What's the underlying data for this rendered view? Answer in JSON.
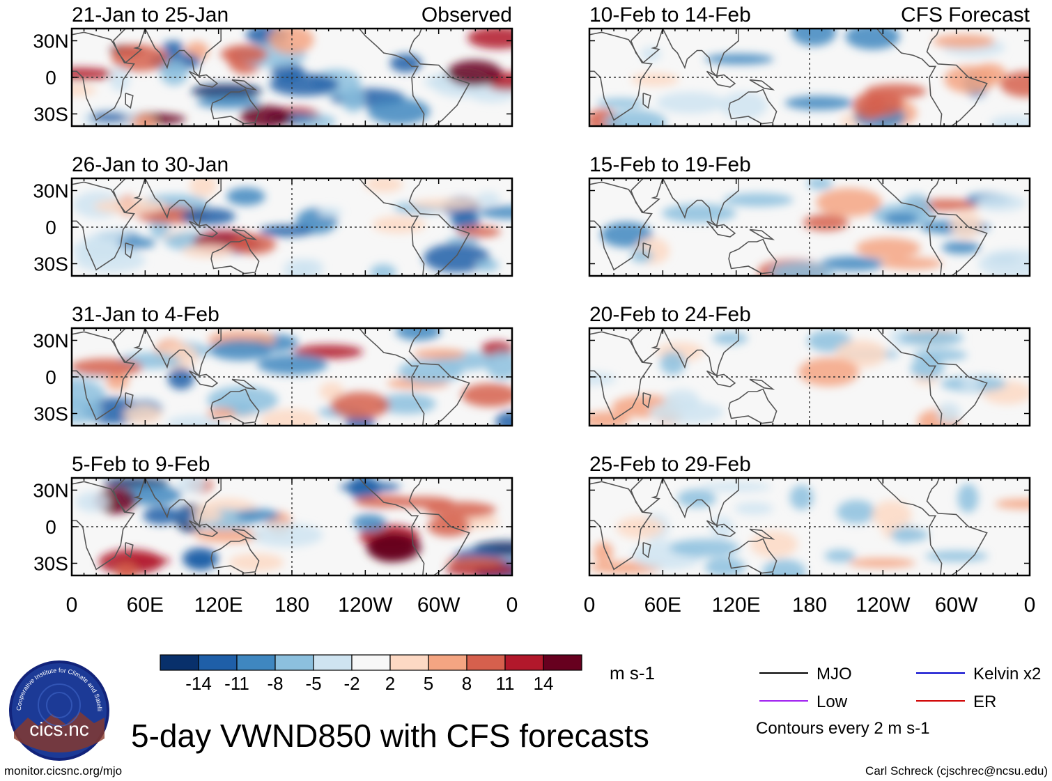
{
  "chart_data": {
    "type": "heatmap",
    "title": "5-day VWND850 with CFS forecasts",
    "variable": "VWND850",
    "units": "m s-1",
    "observed_label": "Observed",
    "forecast_label": "CFS Forecast",
    "x_ticks": [
      "0",
      "60E",
      "120E",
      "180",
      "120W",
      "60W",
      "0"
    ],
    "y_ticks": [
      "30N",
      "0",
      "30S"
    ],
    "lon_range": [
      0,
      360
    ],
    "lat_range": [
      -40,
      40
    ],
    "panels": [
      {
        "title": "21-Jan to 25-Jan",
        "source": "Observed"
      },
      {
        "title": "26-Jan to 30-Jan",
        "source": "Observed"
      },
      {
        "title": "31-Jan to 4-Feb",
        "source": "Observed"
      },
      {
        "title": "5-Feb to 9-Feb",
        "source": "Observed"
      },
      {
        "title": "10-Feb to 14-Feb",
        "source": "CFS Forecast"
      },
      {
        "title": "15-Feb to 19-Feb",
        "source": "CFS Forecast"
      },
      {
        "title": "20-Feb to 24-Feb",
        "source": "CFS Forecast"
      },
      {
        "title": "25-Feb to 29-Feb",
        "source": "CFS Forecast"
      }
    ],
    "colorbar": {
      "labels": [
        "-14",
        "-11",
        "-8",
        "-5",
        "-2",
        "2",
        "5",
        "8",
        "11",
        "14"
      ],
      "colors": [
        "#08306b",
        "#1f5fa8",
        "#3f87c0",
        "#8cc0de",
        "#cfe4f1",
        "#f7f7f7",
        "#fdd9c4",
        "#f4a582",
        "#d6604d",
        "#b2182b",
        "#67001f"
      ]
    },
    "legend": {
      "items": [
        {
          "label": "MJO",
          "color": "#000000"
        },
        {
          "label": "Kelvin x2",
          "color": "#0000cc"
        },
        {
          "label": "Low",
          "color": "#a020f0"
        },
        {
          "label": "ER",
          "color": "#d00000"
        }
      ],
      "note": "Contours every 2 m s-1"
    }
  },
  "footer": {
    "logo_text": "cics.nc",
    "logo_ring_text": "Cooperative Institute for Climate and Satellites",
    "url": "monitor.cicsnc.org/mjo",
    "credit": "Carl Schreck (cjschrec@ncsu.edu)"
  }
}
